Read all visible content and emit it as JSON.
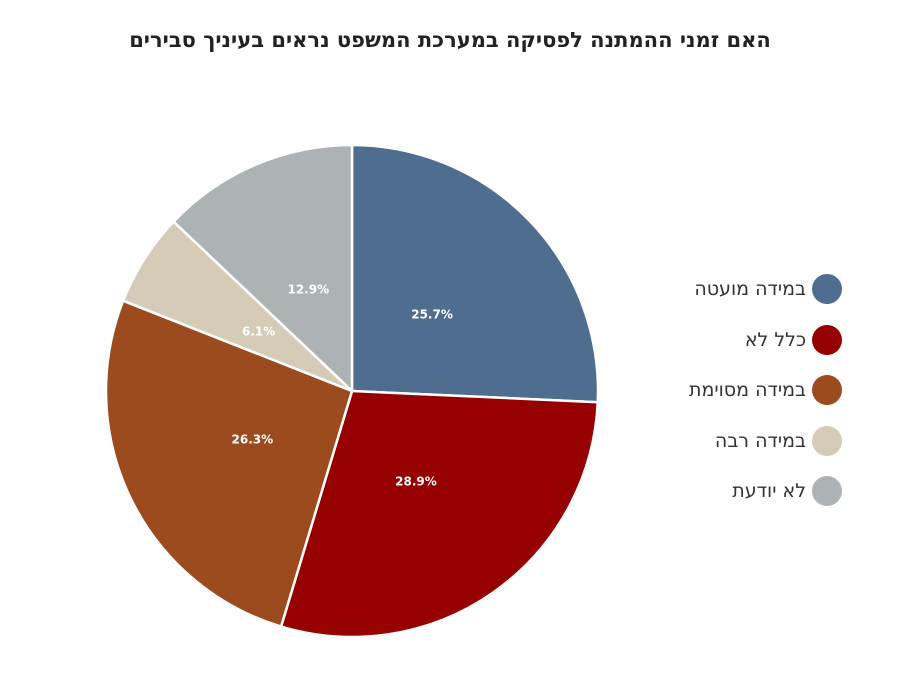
{
  "chart_data": {
    "type": "pie",
    "title": "האם זמני ההמתנה לפסיקה במערכת המשפט נראים בעיניך סבירים",
    "slices": [
      {
        "label": "במידה מועטה",
        "value": 25.7,
        "display": "25.7%",
        "color": "#4f6d8f"
      },
      {
        "label": "כלל לא",
        "value": 28.9,
        "display": "28.9%",
        "color": "#960000"
      },
      {
        "label": "במידה מסוימת",
        "value": 26.3,
        "display": "26.3%",
        "color": "#9c4b1e"
      },
      {
        "label": "במידה רבה",
        "value": 6.1,
        "display": "6.1%",
        "color": "#d6cbb7"
      },
      {
        "label": "לא יודעת",
        "value": 12.9,
        "display": "12.9%",
        "color": "#adb3b4"
      }
    ],
    "start": "12 o'clock",
    "direction": "clockwise",
    "legend": "right"
  }
}
